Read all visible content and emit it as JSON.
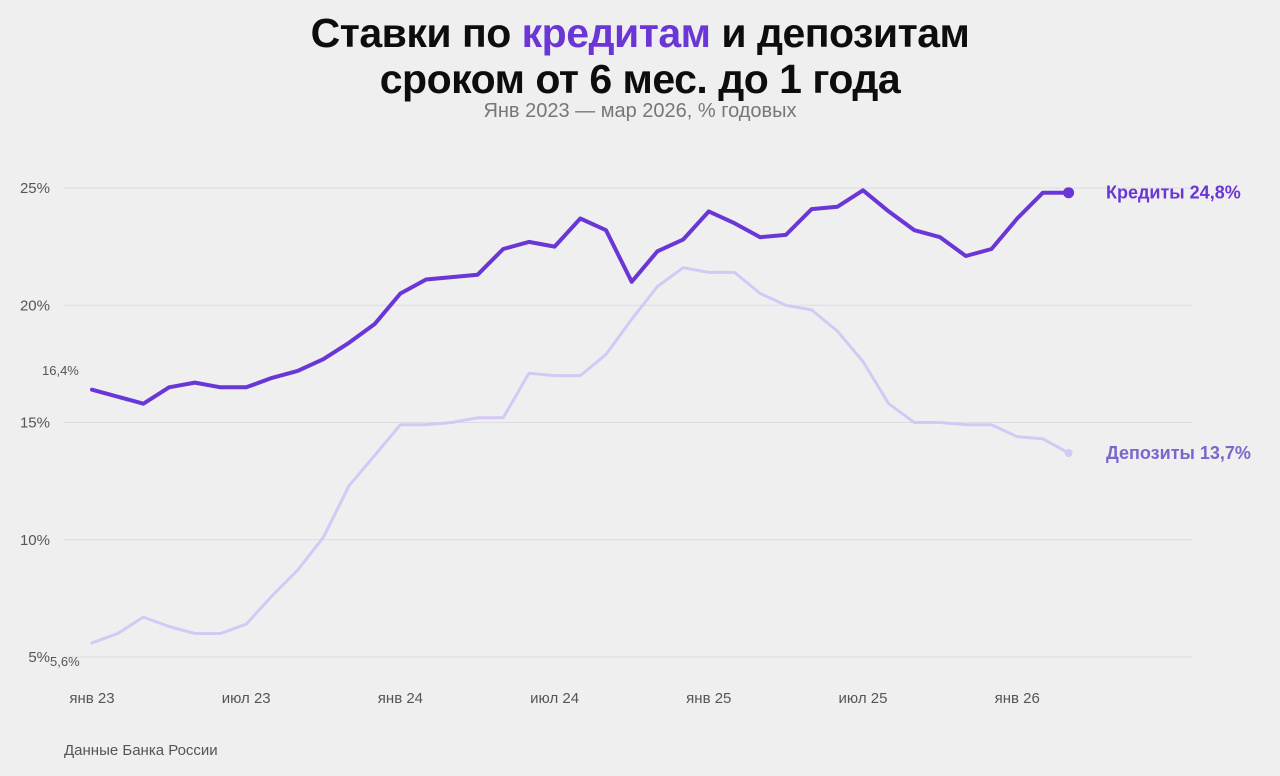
{
  "title": {
    "part1": "Ставки по ",
    "highlight": "кредитам",
    "part2": " и депозитам",
    "line2": "сроком от 6 мес. до 1 года"
  },
  "subtitle": "Янв 2023 — мар 2026, % годовых",
  "source": "Данные Банка России",
  "colors": {
    "credits": "#6a36d6",
    "deposits": "#d4c9f5",
    "deposits_label": "#7d66c9",
    "grid": "#dcdbdf",
    "tick": "#555555"
  },
  "chart_data": {
    "type": "line",
    "title": "Ставки по кредитам и депозитам сроком от 6 мес. до 1 года",
    "subtitle": "Янв 2023 — мар 2026, % годовых",
    "x_tick_labels": [
      "янв 23",
      "июл 23",
      "янв 24",
      "июл 24",
      "янв 25",
      "июл 25",
      "янв 26"
    ],
    "y_tick_labels": [
      "5%",
      "10%",
      "15%",
      "20%",
      "25%"
    ],
    "y_ticks": [
      5,
      10,
      15,
      20,
      25
    ],
    "ylim": [
      5,
      25
    ],
    "grid": true,
    "x": [
      "2023-01",
      "2023-02",
      "2023-03",
      "2023-04",
      "2023-05",
      "2023-06",
      "2023-07",
      "2023-08",
      "2023-09",
      "2023-10",
      "2023-11",
      "2023-12",
      "2024-01",
      "2024-02",
      "2024-03",
      "2024-04",
      "2024-05",
      "2024-06",
      "2024-07",
      "2024-08",
      "2024-09",
      "2024-10",
      "2024-11",
      "2024-12",
      "2025-01",
      "2025-02",
      "2025-03",
      "2025-04",
      "2025-05",
      "2025-06",
      "2025-07",
      "2025-08",
      "2025-09",
      "2025-10",
      "2025-11",
      "2025-12",
      "2026-01",
      "2026-02",
      "2026-03"
    ],
    "series": [
      {
        "name": "Кредиты",
        "end_label": "Кредиты 24,8%",
        "values": [
          16.4,
          16.1,
          15.8,
          16.5,
          16.7,
          16.5,
          16.5,
          16.9,
          17.2,
          17.7,
          18.4,
          19.2,
          20.5,
          21.1,
          21.2,
          21.3,
          22.4,
          22.7,
          22.5,
          23.7,
          23.2,
          21.0,
          22.3,
          22.8,
          24.0,
          23.5,
          22.9,
          23.0,
          24.1,
          24.2,
          24.9,
          24.0,
          23.2,
          22.9,
          22.1,
          22.4,
          23.7,
          24.8,
          24.8
        ]
      },
      {
        "name": "Депозиты",
        "end_label": "Депозиты 13,7%",
        "values": [
          5.6,
          6.0,
          6.7,
          6.3,
          6.0,
          6.0,
          6.4,
          7.6,
          8.7,
          10.1,
          12.3,
          13.6,
          14.9,
          14.9,
          15.0,
          15.2,
          15.2,
          17.1,
          17.0,
          17.0,
          17.9,
          19.4,
          20.8,
          21.6,
          21.4,
          21.4,
          20.5,
          20.0,
          19.8,
          18.9,
          17.6,
          15.8,
          15.0,
          15.0,
          14.9,
          14.9,
          14.4,
          14.3,
          13.7
        ]
      }
    ],
    "annotations": [
      {
        "text": "16,4%",
        "series": "Кредиты",
        "x": "2023-01"
      },
      {
        "text": "5,6%",
        "series": "Депозиты",
        "x": "2023-01"
      }
    ]
  }
}
